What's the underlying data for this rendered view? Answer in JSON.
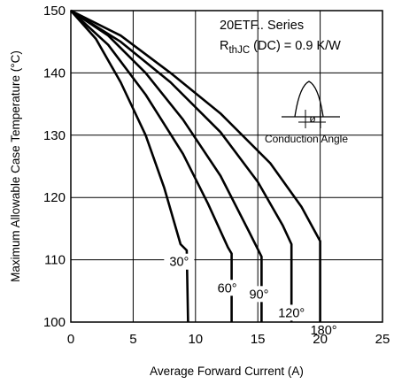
{
  "chart_data": {
    "type": "line",
    "xlabel": "Average Forward Current (A)",
    "ylabel": "Maximum Allowable Case Temperature (°C)",
    "xlim": [
      0,
      25
    ],
    "ylim": [
      100,
      150
    ],
    "xticks": [
      "0",
      "5",
      "10",
      "15",
      "20",
      "25"
    ],
    "yticks": [
      "100",
      "110",
      "120",
      "130",
      "140",
      "150"
    ],
    "grid": true,
    "series": [
      {
        "name": "30°",
        "x": [
          0,
          2,
          4,
          6,
          7.5,
          8.8,
          9.3,
          9.4
        ],
        "y": [
          150,
          145.5,
          138.5,
          130,
          121.5,
          112.5,
          111.5,
          100
        ]
      },
      {
        "name": "60°",
        "x": [
          0,
          3,
          6,
          9,
          11,
          12.6,
          12.9,
          12.9
        ],
        "y": [
          150,
          144.5,
          136.5,
          127,
          119,
          112,
          111,
          100
        ]
      },
      {
        "name": "90°",
        "x": [
          0,
          3,
          6,
          9,
          12,
          14.3,
          15.3,
          15.3
        ],
        "y": [
          150,
          146,
          140,
          132.5,
          123.5,
          114.5,
          110.5,
          100
        ]
      },
      {
        "name": "120°",
        "x": [
          0,
          4,
          8,
          12,
          15,
          17,
          17.7,
          17.7
        ],
        "y": [
          150,
          145,
          138.5,
          130.5,
          122.5,
          115.5,
          112.5,
          100
        ]
      },
      {
        "name": "180°",
        "x": [
          0,
          4,
          8,
          12,
          16,
          18.5,
          20,
          20
        ],
        "y": [
          150,
          146,
          140,
          133.5,
          125.5,
          118.5,
          113,
          100
        ]
      }
    ],
    "annotations": {
      "series_name": "20ETF.. Series",
      "rth_main": "R",
      "rth_sub": "thJC",
      "rth_rest": " (DC) = 0.9 K/W",
      "phi": "ø",
      "conduction_label": "Conduction Angle"
    },
    "colors": {
      "line": "#000000",
      "grid": "#000000",
      "background": "#ffffff"
    }
  }
}
